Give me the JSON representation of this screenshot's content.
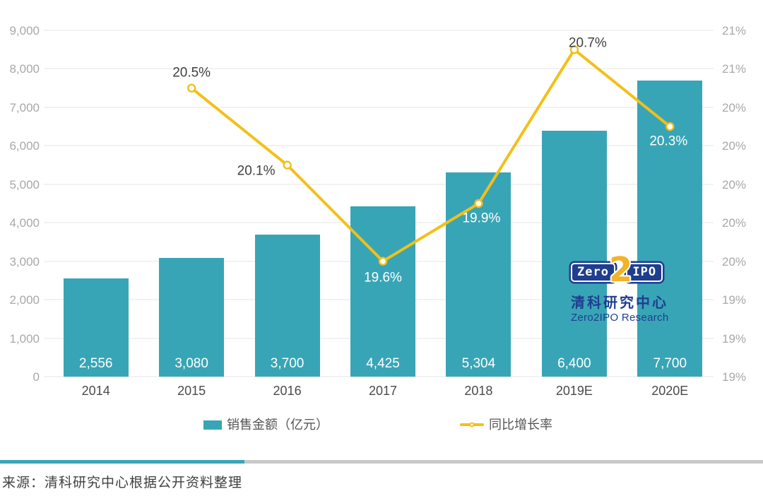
{
  "chart_data": {
    "type": "bar+line",
    "title": "",
    "categories": [
      "2014",
      "2015",
      "2016",
      "2017",
      "2018",
      "2019E",
      "2020E"
    ],
    "series": [
      {
        "name": "销售金额（亿元）",
        "type": "bar",
        "axis": "left",
        "color": "#38a5b6",
        "values": [
          2556,
          3080,
          3700,
          4425,
          5304,
          6400,
          7700
        ],
        "value_labels": [
          "2,556",
          "3,080",
          "3,700",
          "4,425",
          "5,304",
          "6,400",
          "7,700"
        ]
      },
      {
        "name": "同比增长率",
        "type": "line",
        "axis": "right",
        "color": "#f2c018",
        "marker": "circle-white-fill",
        "values": [
          null,
          20.5,
          20.1,
          19.6,
          19.9,
          20.7,
          20.3
        ],
        "value_labels": [
          null,
          "20.5%",
          "20.1%",
          "19.6%",
          "19.9%",
          "20.7%",
          "20.3%"
        ],
        "label_styles": [
          null,
          {
            "dx": 0,
            "dy": -22,
            "color": "#404040"
          },
          {
            "dx": -44,
            "dy": 8,
            "color": "#404040"
          },
          {
            "dx": 0,
            "dy": 23,
            "color": "#ffffff"
          },
          {
            "dx": 4,
            "dy": 21,
            "color": "#ffffff"
          },
          {
            "dx": 19,
            "dy": -9,
            "color": "#404040"
          },
          {
            "dx": -2,
            "dy": 21,
            "color": "#ffffff"
          }
        ]
      }
    ],
    "left_axis": {
      "min": 0,
      "max": 9000,
      "step": 1000,
      "tick_labels": [
        "0",
        "1,000",
        "2,000",
        "3,000",
        "4,000",
        "5,000",
        "6,000",
        "7,000",
        "8,000",
        "9,000"
      ]
    },
    "right_axis": {
      "min": 19.0,
      "max": 20.8,
      "step": 0.2,
      "tick_labels": [
        "19%",
        "19%",
        "19%",
        "20%",
        "20%",
        "20%",
        "20%",
        "20%",
        "21%",
        "21%"
      ]
    },
    "grid": true,
    "legend_position": "bottom"
  },
  "legend": {
    "bar_label": "销售金额（亿元）",
    "line_label": "同比增长率"
  },
  "logo": {
    "zero": "Zero",
    "two": "2",
    "ipo": "IPO",
    "cn": "清科研究中心",
    "en": "Zero2IPO Research"
  },
  "source": {
    "text": "来源：清科研究中心根据公开资料整理"
  },
  "colors": {
    "bar": "#38a5b6",
    "line": "#f2c018",
    "navy": "#1f3e8f",
    "logo_yellow": "#f0b32a",
    "gridline": "#f2f2f2",
    "axis_tick": "#a8a8a8",
    "divider_teal": "#3aa6b9",
    "divider_gray": "#c9c9c9"
  }
}
